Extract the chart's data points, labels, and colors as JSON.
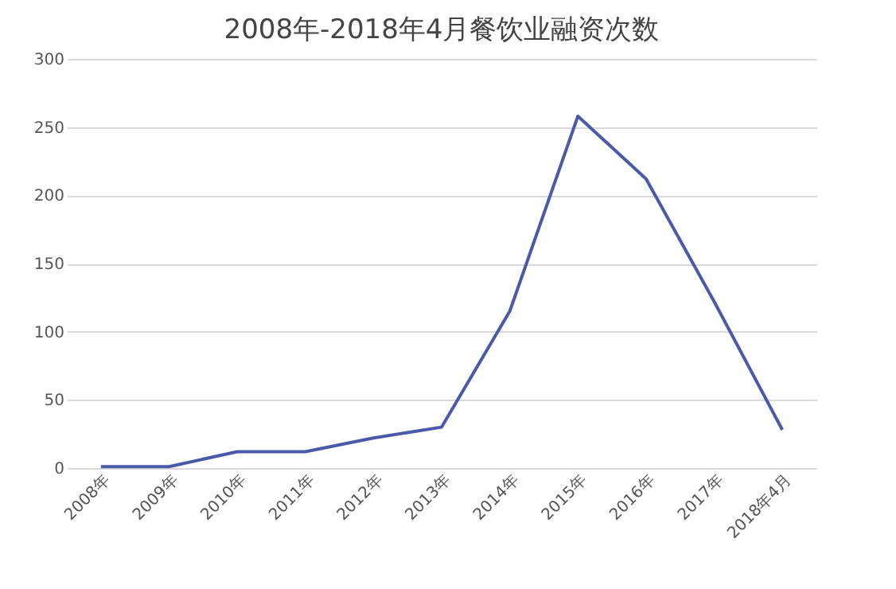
{
  "chart_data": {
    "type": "line",
    "title": "2008年-2018年4月餐饮业融资次数",
    "categories": [
      "2008年",
      "2009年",
      "2010年",
      "2011年",
      "2012年",
      "2013年",
      "2014年",
      "2015年",
      "2016年",
      "2017年",
      "2018年4月"
    ],
    "series": [
      {
        "color": "#4a5aa8",
        "values": [
          1,
          1,
          12,
          12,
          22,
          30,
          115,
          258,
          212,
          122,
          28
        ]
      }
    ],
    "ylim": [
      0,
      300
    ],
    "yticks": [
      0,
      50,
      100,
      150,
      200,
      250,
      300
    ],
    "grid": "y",
    "marker": "none",
    "line_style": "solid",
    "legend": false
  }
}
